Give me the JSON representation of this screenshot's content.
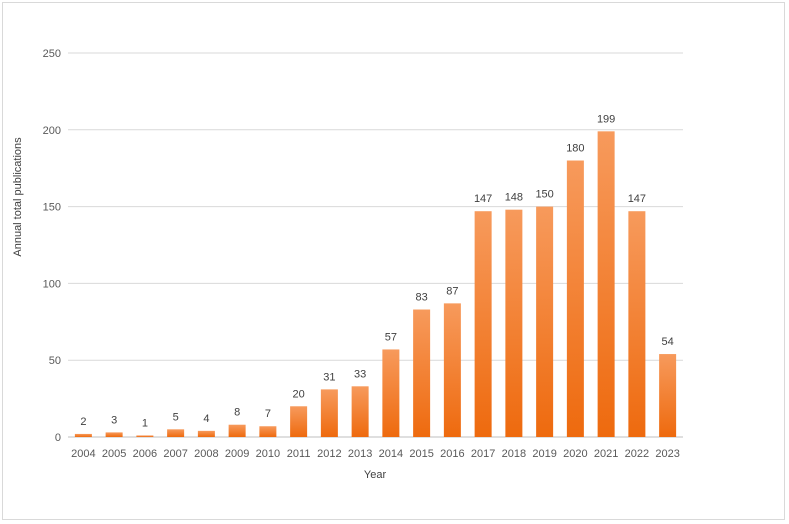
{
  "chart_data": {
    "type": "bar",
    "title": "",
    "xlabel": "Year",
    "ylabel": "Annual total publications",
    "ylim": [
      0,
      250
    ],
    "yticks": [
      0,
      50,
      100,
      150,
      200,
      250
    ],
    "grid": true,
    "legend": "none",
    "categories": [
      "2004",
      "2005",
      "2006",
      "2007",
      "2008",
      "2009",
      "2010",
      "2011",
      "2012",
      "2013",
      "2014",
      "2015",
      "2016",
      "2017",
      "2018",
      "2019",
      "2020",
      "2021",
      "2022",
      "2023"
    ],
    "values": [
      2,
      3,
      1,
      5,
      4,
      8,
      7,
      20,
      31,
      33,
      57,
      83,
      87,
      147,
      148,
      150,
      180,
      199,
      147,
      54
    ],
    "colors": {
      "bar_top": "#f79a5c",
      "bar_bottom": "#ee6a0e",
      "grid": "#d9d9d9"
    }
  }
}
